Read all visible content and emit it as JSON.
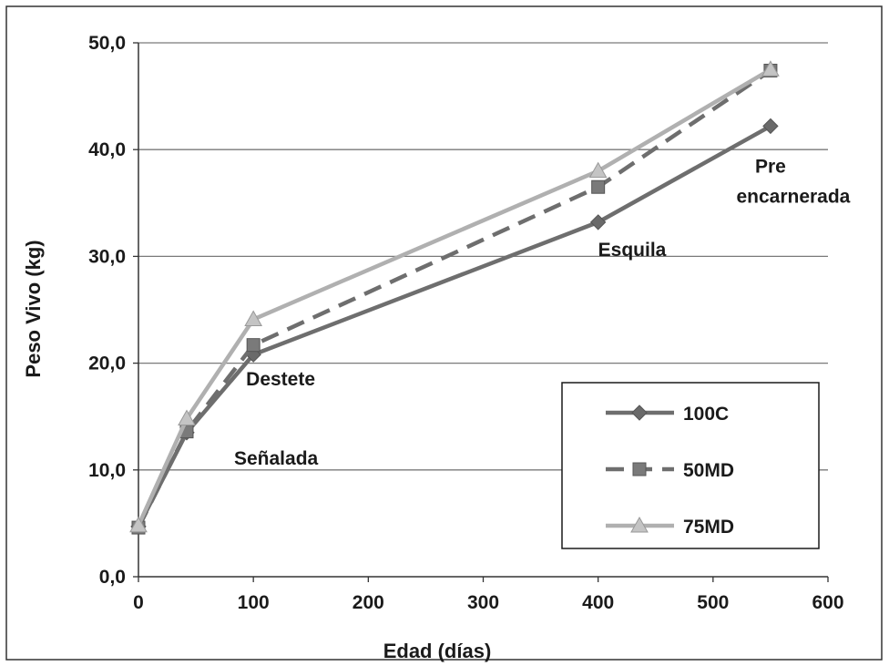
{
  "chart_data": {
    "type": "line",
    "title": "",
    "xlabel": "Edad (días)",
    "ylabel": "Peso Vivo (kg)",
    "xlim": [
      0,
      600
    ],
    "ylim": [
      0,
      50
    ],
    "x_ticks": [
      "0",
      "100",
      "200",
      "300",
      "400",
      "500",
      "600"
    ],
    "y_ticks": [
      "0,0",
      "10,0",
      "20,0",
      "30,0",
      "40,0",
      "50,0"
    ],
    "grid": "horizontal",
    "legend_position": "bottom-right",
    "series": [
      {
        "name": "100C",
        "color": "#6e6e6e",
        "dash": "solid",
        "marker": "diamond",
        "points": [
          [
            0,
            4.7
          ],
          [
            42,
            13.5
          ],
          [
            100,
            20.8
          ],
          [
            400,
            33.2
          ],
          [
            550,
            42.2
          ]
        ]
      },
      {
        "name": "50MD",
        "color": "#6e6e6e",
        "dash": "dashed",
        "marker": "square",
        "points": [
          [
            0,
            4.6
          ],
          [
            42,
            13.6
          ],
          [
            100,
            21.7
          ],
          [
            400,
            36.5
          ],
          [
            550,
            47.4
          ]
        ]
      },
      {
        "name": "75MD",
        "color": "#b0b0b0",
        "dash": "solid",
        "marker": "triangle",
        "points": [
          [
            0,
            4.8
          ],
          [
            42,
            14.8
          ],
          [
            100,
            24.1
          ],
          [
            400,
            38.0
          ],
          [
            550,
            47.5
          ]
        ]
      }
    ],
    "annotations": [
      {
        "text": "Señalada",
        "x": 42,
        "y": 13.5
      },
      {
        "text": "Destete",
        "x": 100,
        "y": 20.8
      },
      {
        "text": "Esquila",
        "x": 400,
        "y": 33.2
      },
      {
        "text": "Pre",
        "x": 550,
        "y": 42.2
      },
      {
        "text": "encarnerada",
        "x": 550,
        "y": 42.2
      }
    ]
  }
}
